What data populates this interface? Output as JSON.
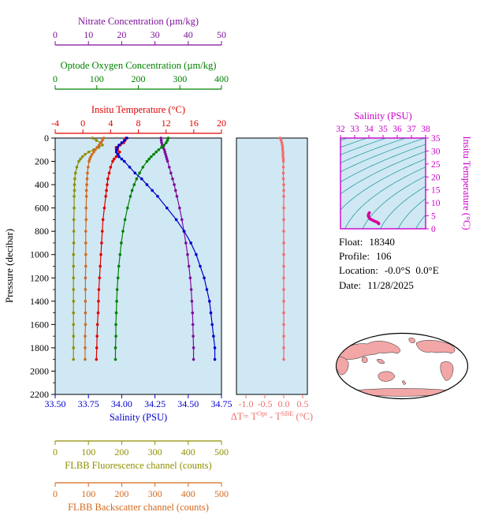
{
  "page": {
    "title": "Float vertical profile plot"
  },
  "colors": {
    "plot_bg": "#cfe8f4",
    "frame": "#000000",
    "nitrate": "#7d0f9c",
    "oxygen": "#008000",
    "temperature": "#e00000",
    "salinity": "#0000cd",
    "fluorescence": "#8f8f00",
    "backscatter": "#d2691e",
    "delta_t": "#f26d6d",
    "ts_frame": "#cc00cc",
    "ts_data": "#d4009c",
    "contour": "#008b8b",
    "map_land": "#f2a6a6",
    "map_ocean": "#ffffff"
  },
  "chart_data": {
    "type": "line",
    "description": "Argo float vertical profiles vs pressure, delta-T panel, T-S diagram with isopycnal contours, and station map",
    "main": {
      "ylabel": "Pressure (decibar)",
      "ylim": [
        0,
        2200
      ],
      "yticks": [
        "0",
        "200",
        "400",
        "600",
        "800",
        "1000",
        "1200",
        "1400",
        "1600",
        "1800",
        "2000",
        "2200"
      ],
      "pressure": [
        0,
        20,
        40,
        60,
        80,
        100,
        120,
        140,
        160,
        180,
        200,
        250,
        300,
        350,
        400,
        450,
        500,
        600,
        700,
        800,
        900,
        1000,
        1100,
        1200,
        1300,
        1400,
        1500,
        1600,
        1700,
        1800,
        1900
      ],
      "series": [
        {
          "id": "nitrate-axis",
          "name": "Nitrate Concentration (µm/kg)",
          "color": "#7d0f9c",
          "xlim": [
            0,
            50
          ],
          "xticks": [
            "0",
            "10",
            "20",
            "30",
            "40",
            "50"
          ],
          "values": [
            31.8,
            31.9,
            32.0,
            32.2,
            32.5,
            32.8,
            33.0,
            33.2,
            33.4,
            33.6,
            33.8,
            34.3,
            34.8,
            35.3,
            35.8,
            36.2,
            36.6,
            37.4,
            38.1,
            38.7,
            39.3,
            39.8,
            40.2,
            40.6,
            40.9,
            41.1,
            41.3,
            41.4,
            41.5,
            41.6,
            41.6
          ]
        },
        {
          "id": "oxygen-axis",
          "name": "Optode Oxygen Concentration (µm/kg)",
          "color": "#008000",
          "xlim": [
            0,
            400
          ],
          "xticks": [
            "0",
            "100",
            "200",
            "300",
            "400"
          ],
          "values": [
            272,
            270,
            267,
            262,
            256,
            249,
            243,
            237,
            231,
            226,
            221,
            211,
            203,
            196,
            190,
            185,
            181,
            174,
            168,
            163,
            159,
            156,
            153,
            151,
            149,
            148,
            147,
            146,
            146,
            145,
            145
          ]
        },
        {
          "id": "temperature-axis",
          "name": "Insitu Temperature (°C)",
          "color": "#e00000",
          "xlim": [
            -4,
            20
          ],
          "xticks": [
            "-4",
            "0",
            "4",
            "8",
            "12",
            "16",
            "20"
          ],
          "values": [
            6.2,
            6.1,
            5.9,
            5.4,
            4.8,
            5.0,
            5.3,
            5.1,
            4.8,
            4.5,
            4.3,
            4.0,
            3.8,
            3.6,
            3.5,
            3.4,
            3.3,
            3.1,
            2.9,
            2.8,
            2.7,
            2.6,
            2.5,
            2.4,
            2.3,
            2.25,
            2.2,
            2.1,
            2.05,
            2.0,
            1.95
          ]
        },
        {
          "id": "salinity-axis",
          "name": "Salinity (PSU)",
          "color": "#0000cd",
          "xlim": [
            33.5,
            34.75
          ],
          "xticks": [
            "33.50",
            "33.75",
            "34.00",
            "34.25",
            "34.50",
            "34.75"
          ],
          "values": [
            34.04,
            34.02,
            34.0,
            33.98,
            33.97,
            33.96,
            33.96,
            33.97,
            33.98,
            34.0,
            34.02,
            34.06,
            34.1,
            34.15,
            34.19,
            34.23,
            34.27,
            34.34,
            34.41,
            34.47,
            34.52,
            34.56,
            34.59,
            34.62,
            34.64,
            34.66,
            34.67,
            34.68,
            34.69,
            34.7,
            34.7
          ]
        },
        {
          "id": "fluorescence-axis",
          "name": "FLBB Fluorescence channel (counts)",
          "color": "#8f8f00",
          "xlim": [
            0,
            500
          ],
          "xticks": [
            "0",
            "100",
            "200",
            "300",
            "400",
            "500"
          ],
          "values": [
            112,
            124,
            136,
            142,
            131,
            116,
            101,
            90,
            82,
            76,
            71,
            65,
            61,
            59,
            58,
            58,
            57,
            57,
            56,
            56,
            56,
            55,
            55,
            55,
            55,
            55,
            55,
            55,
            55,
            55,
            55
          ]
        },
        {
          "id": "backscatter-axis",
          "name": "FLBB Backscatter channel (counts)",
          "color": "#d2691e",
          "xlim": [
            0,
            500
          ],
          "xticks": [
            "0",
            "100",
            "200",
            "300",
            "400",
            "500"
          ],
          "values": [
            146,
            142,
            138,
            132,
            126,
            121,
            116,
            111,
            107,
            104,
            102,
            99,
            97,
            96,
            95,
            94,
            94,
            93,
            93,
            92,
            92,
            92,
            92,
            91,
            91,
            91,
            91,
            91,
            90,
            90,
            90
          ]
        }
      ]
    },
    "delta_t": {
      "xlabel_parts": [
        "ΔT= T",
        "Opt",
        " - T",
        "SBE",
        " (°C)"
      ],
      "xlim": [
        -1.25,
        0.625
      ],
      "xticks": [
        "-1.0",
        "-0.5",
        "0.0",
        "0.5"
      ],
      "values": [
        -0.1,
        -0.07,
        -0.05,
        -0.04,
        -0.03,
        -0.03,
        -0.02,
        -0.02,
        -0.02,
        -0.01,
        -0.01,
        -0.01,
        -0.01,
        -0.01,
        0.0,
        0.0,
        0.0,
        0.0,
        0.0,
        0.0,
        0.0,
        0.0,
        0.0,
        0.0,
        0.0,
        0.0,
        0.0,
        0.0,
        0.0,
        0.0,
        0.0
      ]
    },
    "ts": {
      "xlabel": "Salinity (PSU)",
      "ylabel": "Insitu Temperature (°C)",
      "xlim": [
        32,
        38
      ],
      "ylim": [
        0,
        35
      ],
      "xticks": [
        "32",
        "33",
        "34",
        "35",
        "36",
        "37",
        "38"
      ],
      "yticks": [
        "0",
        "5",
        "10",
        "15",
        "20",
        "25",
        "30",
        "35"
      ],
      "contour_levels": [
        17,
        18,
        19,
        20,
        21,
        22,
        23,
        24,
        25,
        26,
        27,
        28,
        29,
        30
      ]
    }
  },
  "info": {
    "lines": [
      {
        "label": "Float:",
        "value": "18340"
      },
      {
        "label": "Profile:",
        "value": "106"
      },
      {
        "label": "Location:",
        "value": "-0.0°S  0.0°E"
      },
      {
        "label": "Date:",
        "value": "11/28/2025"
      }
    ]
  }
}
